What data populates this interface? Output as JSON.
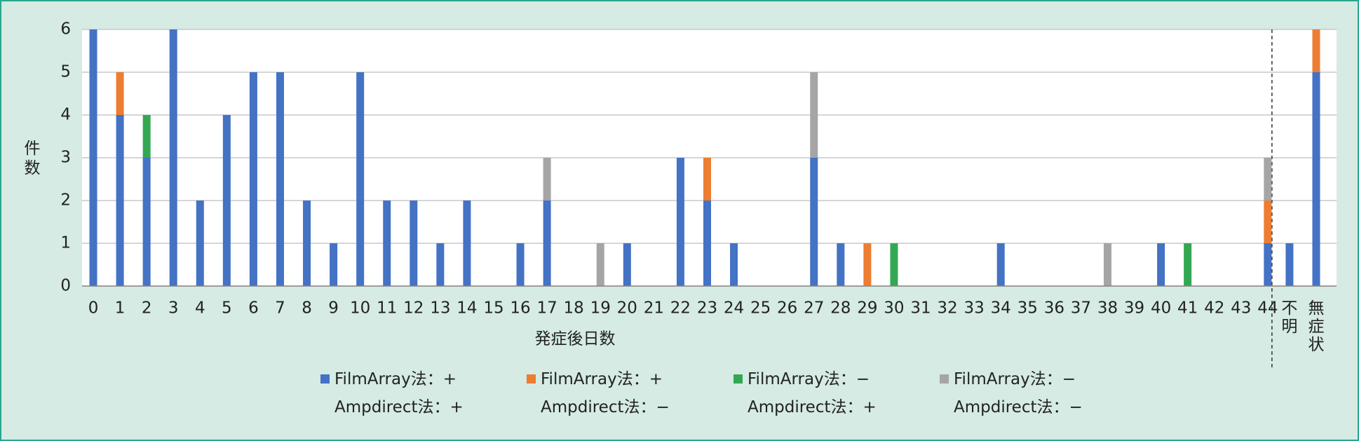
{
  "chart_data": {
    "type": "stacked-bar",
    "y_label": "件数",
    "x_label": "発症後日数",
    "categories": [
      "0",
      "1",
      "2",
      "3",
      "4",
      "5",
      "6",
      "7",
      "8",
      "9",
      "10",
      "11",
      "12",
      "13",
      "14",
      "15",
      "16",
      "17",
      "18",
      "19",
      "20",
      "21",
      "22",
      "23",
      "24",
      "25",
      "26",
      "27",
      "28",
      "29",
      "30",
      "31",
      "32",
      "33",
      "34",
      "35",
      "36",
      "37",
      "38",
      "39",
      "40",
      "41",
      "42",
      "43",
      "44",
      "不明",
      "無症状"
    ],
    "series": [
      {
        "name": "FilmArray法：+\nAmpdirect法：+",
        "color": "#4472c4",
        "values": [
          6,
          4,
          3,
          6,
          2,
          4,
          5,
          5,
          2,
          1,
          5,
          2,
          2,
          1,
          2,
          0,
          1,
          2,
          0,
          0,
          1,
          0,
          3,
          2,
          1,
          0,
          0,
          3,
          1,
          0,
          0,
          0,
          0,
          0,
          1,
          0,
          0,
          0,
          0,
          0,
          1,
          0,
          0,
          0,
          1,
          1,
          5
        ]
      },
      {
        "name": "FilmArray法：+\nAmpdirect法：−",
        "color": "#ed7d31",
        "values": [
          0,
          1,
          0,
          0,
          0,
          0,
          0,
          0,
          0,
          0,
          0,
          0,
          0,
          0,
          0,
          0,
          0,
          0,
          0,
          0,
          0,
          0,
          0,
          1,
          0,
          0,
          0,
          0,
          0,
          1,
          0,
          0,
          0,
          0,
          0,
          0,
          0,
          0,
          0,
          0,
          0,
          0,
          0,
          0,
          1,
          0,
          1
        ]
      },
      {
        "name": "FilmArray法：−\nAmpdirect法：+",
        "color": "#33a852",
        "values": [
          0,
          0,
          1,
          0,
          0,
          0,
          0,
          0,
          0,
          0,
          0,
          0,
          0,
          0,
          0,
          0,
          0,
          0,
          0,
          0,
          0,
          0,
          0,
          0,
          0,
          0,
          0,
          0,
          0,
          0,
          1,
          0,
          0,
          0,
          0,
          0,
          0,
          0,
          0,
          0,
          0,
          1,
          0,
          0,
          0,
          0,
          0
        ]
      },
      {
        "name": "FilmArray法：−\nAmpdirect法：−",
        "color": "#a5a5a5",
        "values": [
          0,
          0,
          0,
          0,
          0,
          0,
          0,
          0,
          0,
          0,
          0,
          0,
          0,
          0,
          0,
          0,
          0,
          1,
          0,
          1,
          0,
          0,
          0,
          0,
          0,
          0,
          0,
          2,
          0,
          0,
          0,
          0,
          0,
          0,
          0,
          0,
          0,
          0,
          1,
          0,
          0,
          0,
          0,
          0,
          1,
          0,
          0
        ]
      }
    ],
    "ylim": [
      0,
      6
    ],
    "yticks": [
      0,
      1,
      2,
      3,
      4,
      5,
      6
    ],
    "grid": true
  }
}
